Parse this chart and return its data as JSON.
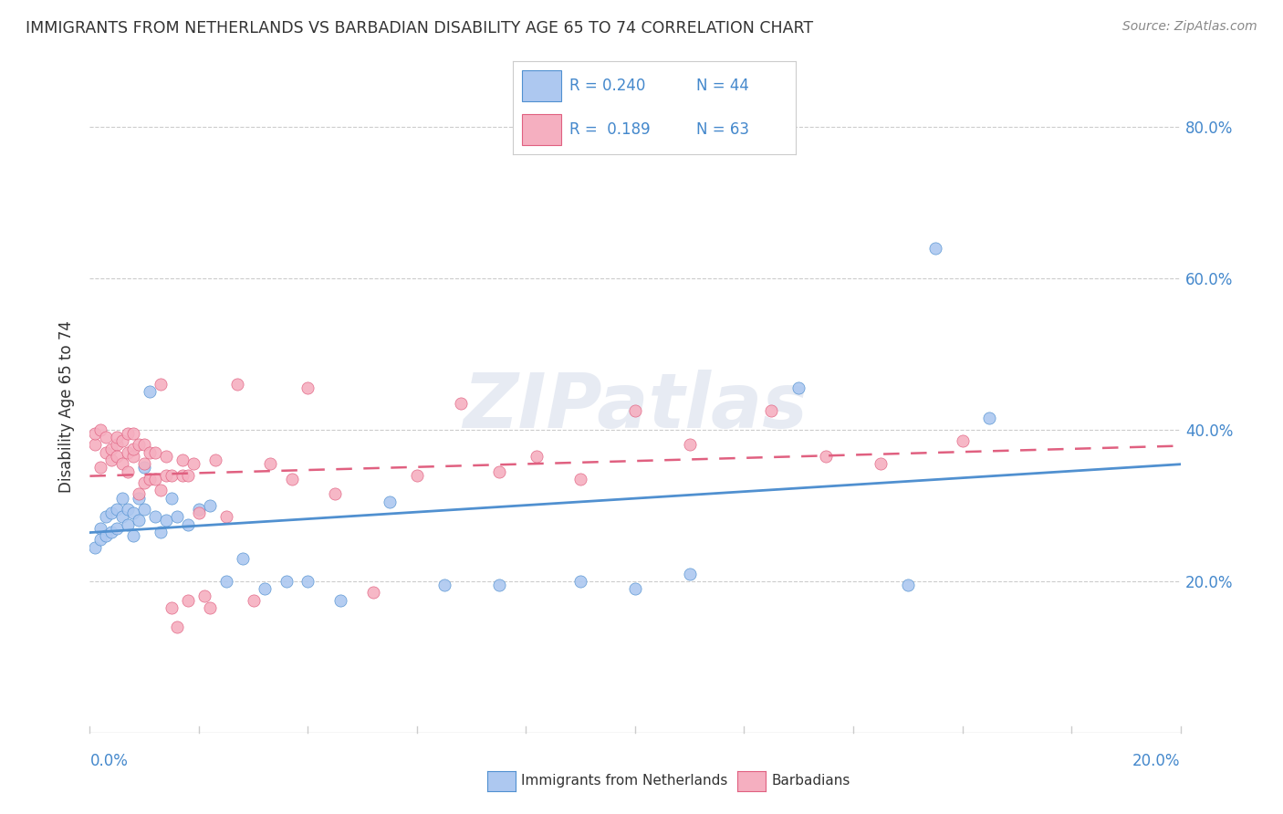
{
  "title": "IMMIGRANTS FROM NETHERLANDS VS BARBADIAN DISABILITY AGE 65 TO 74 CORRELATION CHART",
  "source": "Source: ZipAtlas.com",
  "ylabel": "Disability Age 65 to 74",
  "ytick_values": [
    0.2,
    0.4,
    0.6,
    0.8
  ],
  "xlim": [
    0.0,
    0.2
  ],
  "ylim": [
    0.0,
    0.86
  ],
  "legend_r1": "R = 0.240",
  "legend_n1": "N = 44",
  "legend_r2": "R =  0.189",
  "legend_n2": "N = 63",
  "watermark": "ZIPatlas",
  "blue_color": "#adc8f0",
  "pink_color": "#f5afc0",
  "blue_line_color": "#5090d0",
  "pink_line_color": "#e06080",
  "legend_text_color": "#4488cc",
  "title_color": "#333333",
  "source_color": "#888888",
  "axis_color": "#cccccc",
  "blue_scatter_x": [
    0.001,
    0.002,
    0.002,
    0.003,
    0.003,
    0.004,
    0.004,
    0.005,
    0.005,
    0.006,
    0.006,
    0.007,
    0.007,
    0.008,
    0.008,
    0.009,
    0.009,
    0.01,
    0.01,
    0.011,
    0.012,
    0.013,
    0.014,
    0.015,
    0.016,
    0.018,
    0.02,
    0.022,
    0.025,
    0.028,
    0.032,
    0.036,
    0.04,
    0.046,
    0.055,
    0.065,
    0.075,
    0.09,
    0.1,
    0.11,
    0.13,
    0.15,
    0.155,
    0.165
  ],
  "blue_scatter_y": [
    0.245,
    0.27,
    0.255,
    0.285,
    0.26,
    0.29,
    0.265,
    0.295,
    0.27,
    0.285,
    0.31,
    0.295,
    0.275,
    0.29,
    0.26,
    0.31,
    0.28,
    0.35,
    0.295,
    0.45,
    0.285,
    0.265,
    0.28,
    0.31,
    0.285,
    0.275,
    0.295,
    0.3,
    0.2,
    0.23,
    0.19,
    0.2,
    0.2,
    0.175,
    0.305,
    0.195,
    0.195,
    0.2,
    0.19,
    0.21,
    0.455,
    0.195,
    0.64,
    0.415
  ],
  "pink_scatter_x": [
    0.001,
    0.001,
    0.002,
    0.002,
    0.003,
    0.003,
    0.004,
    0.004,
    0.005,
    0.005,
    0.005,
    0.006,
    0.006,
    0.007,
    0.007,
    0.007,
    0.008,
    0.008,
    0.008,
    0.009,
    0.009,
    0.01,
    0.01,
    0.01,
    0.011,
    0.011,
    0.012,
    0.012,
    0.013,
    0.013,
    0.014,
    0.014,
    0.015,
    0.015,
    0.016,
    0.017,
    0.017,
    0.018,
    0.018,
    0.019,
    0.02,
    0.021,
    0.022,
    0.023,
    0.025,
    0.027,
    0.03,
    0.033,
    0.037,
    0.04,
    0.045,
    0.052,
    0.06,
    0.068,
    0.075,
    0.082,
    0.09,
    0.1,
    0.11,
    0.125,
    0.135,
    0.145,
    0.16
  ],
  "pink_scatter_y": [
    0.38,
    0.395,
    0.35,
    0.4,
    0.37,
    0.39,
    0.36,
    0.375,
    0.38,
    0.365,
    0.39,
    0.355,
    0.385,
    0.37,
    0.345,
    0.395,
    0.365,
    0.375,
    0.395,
    0.315,
    0.38,
    0.355,
    0.33,
    0.38,
    0.37,
    0.335,
    0.37,
    0.335,
    0.46,
    0.32,
    0.365,
    0.34,
    0.34,
    0.165,
    0.14,
    0.36,
    0.34,
    0.34,
    0.175,
    0.355,
    0.29,
    0.18,
    0.165,
    0.36,
    0.285,
    0.46,
    0.175,
    0.355,
    0.335,
    0.455,
    0.315,
    0.185,
    0.34,
    0.435,
    0.345,
    0.365,
    0.335,
    0.425,
    0.38,
    0.425,
    0.365,
    0.355,
    0.385
  ]
}
